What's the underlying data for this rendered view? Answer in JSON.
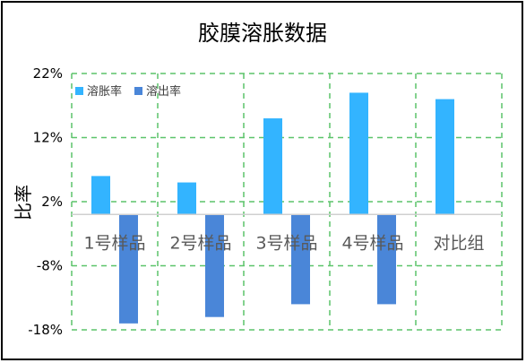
{
  "chart_data": {
    "type": "bar",
    "title": "胶膜溶胀数据",
    "ylabel": "比率",
    "xlabel": "",
    "categories": [
      "1号样品",
      "2号样品",
      "3号样品",
      "4号样品",
      "对比组"
    ],
    "series": [
      {
        "name": "溶胀率",
        "color": "#33B4FF",
        "values": [
          6.0,
          5.0,
          15.0,
          19.0,
          18.0
        ]
      },
      {
        "name": "溶出率",
        "color": "#4A86D8",
        "values": [
          -17.0,
          -16.0,
          -14.0,
          -14.0,
          null
        ]
      }
    ],
    "ylim": [
      -18,
      22
    ],
    "yticks": [
      22,
      12,
      2,
      -8,
      -18
    ],
    "ytick_labels": [
      "22%",
      "12%",
      "2%",
      "-8%",
      "-18%"
    ],
    "grid": true,
    "grid_color": "#5CC46A",
    "legend_position": "top-left"
  }
}
